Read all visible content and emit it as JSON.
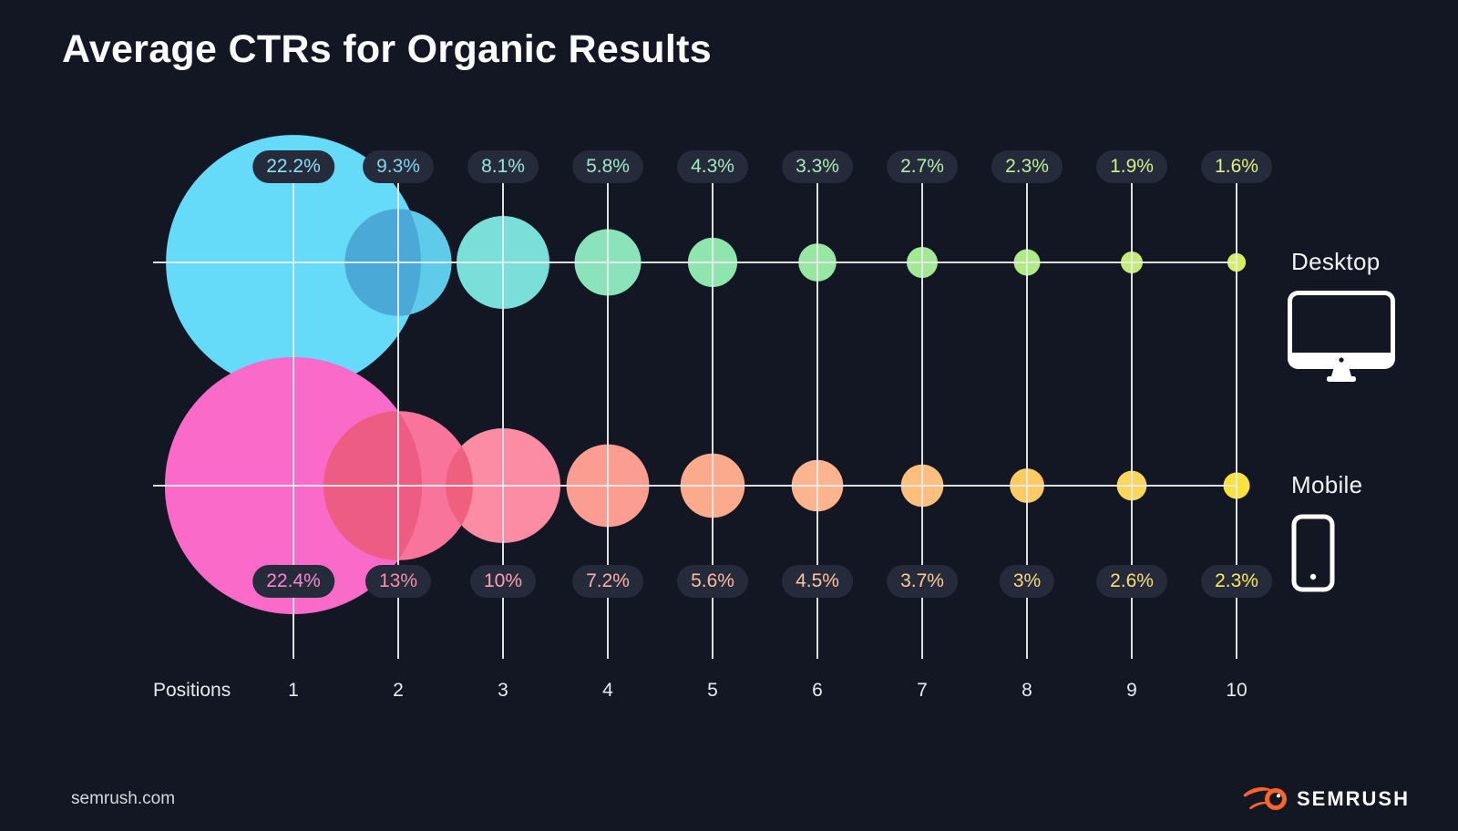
{
  "page": {
    "title": "Average CTRs for Organic Results",
    "footer_url": "semrush.com",
    "brand_name": "SEMRUSH",
    "background_color": "#131724",
    "accent_orange": "#FF642D"
  },
  "chart_data": {
    "type": "bubble",
    "title": "Average CTRs for Organic Results",
    "value_unit": "%",
    "grid": true,
    "legend_position": "right",
    "badge_bg": "#252B3A",
    "grid_color": "#E9EAEC",
    "radius_scale_px_per_percent": 6.3,
    "x_axis": {
      "label": "Positions",
      "categories": [
        "1",
        "2",
        "3",
        "4",
        "5",
        "6",
        "7",
        "8",
        "9",
        "10"
      ]
    },
    "series": [
      {
        "name": "Desktop",
        "icon": "desktop-monitor-icon",
        "values": [
          22.2,
          9.3,
          8.1,
          5.8,
          4.3,
          3.3,
          2.7,
          2.3,
          1.9,
          1.6
        ],
        "labels": [
          "22.2%",
          "9.3%",
          "8.1%",
          "5.8%",
          "4.3%",
          "3.3%",
          "2.7%",
          "2.3%",
          "1.9%",
          "1.6%"
        ],
        "colors": [
          "#66DBF9",
          "#5FCBEA",
          "#7ADFD8",
          "#8AE3BB",
          "#8FE5AE",
          "#97E7A3",
          "#A2E895",
          "#B0EA84",
          "#C2EC72",
          "#D6EF60"
        ],
        "label_colors": [
          "#85E2F8",
          "#7FD6EE",
          "#93E6DF",
          "#9FE8C7",
          "#A4EABC",
          "#ABEBB2",
          "#B4ECA6",
          "#C0EE97",
          "#CFF08A",
          "#DFF27D"
        ],
        "overlap_segments": [
          {
            "a": 0,
            "b": 1,
            "color": "#4AA9D6"
          }
        ]
      },
      {
        "name": "Mobile",
        "icon": "mobile-phone-icon",
        "values": [
          22.4,
          13,
          10,
          7.2,
          5.6,
          4.5,
          3.7,
          3,
          2.6,
          2.3
        ],
        "labels": [
          "22.4%",
          "13%",
          "10%",
          "7.2%",
          "5.6%",
          "4.5%",
          "3.7%",
          "3%",
          "2.6%",
          "2.3%"
        ],
        "colors": [
          "#F96AC9",
          "#F9749B",
          "#FB8CA3",
          "#FC9D92",
          "#FBAB8B",
          "#FCB48E",
          "#FDBF7D",
          "#FCCB64",
          "#FAD75A",
          "#F8E33E"
        ],
        "label_colors": [
          "#FA85D3",
          "#FA8DAC",
          "#FCA1B3",
          "#FDAFA5",
          "#FCBB9E",
          "#FDC3A0",
          "#FDCC92",
          "#FDD77E",
          "#FBDF75",
          "#F9E95F"
        ],
        "overlap_segments": [
          {
            "a": 0,
            "b": 1,
            "color": "#ED5C82"
          },
          {
            "a": 1,
            "b": 2,
            "color": "#EF5F7E"
          }
        ]
      }
    ]
  }
}
